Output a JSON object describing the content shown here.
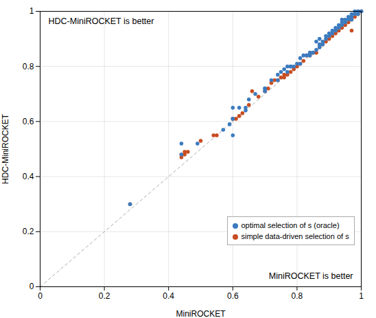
{
  "chart_data": {
    "type": "scatter",
    "xlabel": "MiniROCKET",
    "ylabel": "HDC-MiniROCKET",
    "xlim": [
      0,
      1
    ],
    "ylim": [
      0,
      1
    ],
    "xticks": [
      0,
      0.2,
      0.4,
      0.6,
      0.8,
      1
    ],
    "yticks": [
      0,
      0.2,
      0.4,
      0.6,
      0.8,
      1
    ],
    "grid": true,
    "legend": "lower right",
    "annotations": [
      "HDC-MiniROCKET is better",
      "MiniROCKET is better"
    ],
    "series": [
      {
        "name": "optimal selection of s (oracle)",
        "color": "#3b7bbf",
        "x": [
          0.28,
          0.44,
          0.44,
          0.49,
          0.57,
          0.59,
          0.6,
          0.6,
          0.64,
          0.64,
          0.6,
          0.62,
          0.65,
          0.67,
          0.7,
          0.7,
          0.7,
          0.72,
          0.74,
          0.74,
          0.75,
          0.76,
          0.77,
          0.77,
          0.78,
          0.78,
          0.79,
          0.8,
          0.81,
          0.81,
          0.82,
          0.83,
          0.84,
          0.84,
          0.85,
          0.86,
          0.86,
          0.87,
          0.87,
          0.87,
          0.88,
          0.88,
          0.89,
          0.89,
          0.9,
          0.9,
          0.91,
          0.91,
          0.92,
          0.92,
          0.93,
          0.93,
          0.94,
          0.94,
          0.94,
          0.95,
          0.95,
          0.96,
          0.96,
          0.97,
          0.97,
          0.97,
          0.98,
          0.98,
          0.99,
          0.99,
          0.99,
          1.0,
          1.0
        ],
        "values": [
          0.3,
          0.48,
          0.52,
          0.52,
          0.57,
          0.59,
          0.55,
          0.61,
          0.64,
          0.65,
          0.65,
          0.65,
          0.68,
          0.7,
          0.71,
          0.72,
          0.72,
          0.75,
          0.75,
          0.77,
          0.78,
          0.79,
          0.78,
          0.8,
          0.8,
          0.8,
          0.8,
          0.81,
          0.81,
          0.83,
          0.84,
          0.84,
          0.84,
          0.85,
          0.85,
          0.86,
          0.89,
          0.87,
          0.88,
          0.9,
          0.88,
          0.89,
          0.9,
          0.91,
          0.91,
          0.92,
          0.92,
          0.93,
          0.93,
          0.94,
          0.94,
          0.95,
          0.95,
          0.96,
          0.97,
          0.96,
          0.97,
          0.97,
          0.98,
          0.97,
          0.98,
          0.99,
          0.99,
          1.0,
          0.99,
          1.0,
          1.0,
          1.0,
          1.0
        ]
      },
      {
        "name": "simple data-driven selection of s",
        "color": "#c84c20",
        "x": [
          0.28,
          0.44,
          0.44,
          0.45,
          0.45,
          0.46,
          0.5,
          0.54,
          0.55,
          0.6,
          0.61,
          0.62,
          0.63,
          0.65,
          0.66,
          0.68,
          0.7,
          0.71,
          0.72,
          0.73,
          0.74,
          0.75,
          0.76,
          0.76,
          0.77,
          0.78,
          0.79,
          0.8,
          0.81,
          0.82,
          0.83,
          0.84,
          0.85,
          0.86,
          0.87,
          0.88,
          0.89,
          0.9,
          0.91,
          0.92,
          0.93,
          0.94,
          0.95,
          0.96,
          0.97,
          0.97,
          0.98,
          0.99,
          1.0
        ],
        "values": [
          0.3,
          0.47,
          0.48,
          0.48,
          0.49,
          0.49,
          0.53,
          0.55,
          0.55,
          0.61,
          0.61,
          0.62,
          0.63,
          0.66,
          0.71,
          0.69,
          0.71,
          0.72,
          0.74,
          0.75,
          0.75,
          0.76,
          0.76,
          0.77,
          0.77,
          0.78,
          0.79,
          0.8,
          0.81,
          0.82,
          0.84,
          0.84,
          0.85,
          0.85,
          0.87,
          0.88,
          0.89,
          0.9,
          0.91,
          0.92,
          0.93,
          0.94,
          0.95,
          0.96,
          0.93,
          0.97,
          0.98,
          0.99,
          1.0
        ]
      }
    ]
  }
}
